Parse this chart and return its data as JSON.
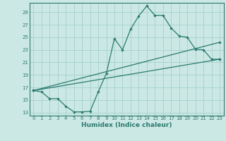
{
  "xlabel": "Humidex (Indice chaleur)",
  "bg_color": "#cce8e4",
  "grid_color": "#a8d4cf",
  "line_color": "#2a7a6e",
  "xlim": [
    -0.5,
    23.5
  ],
  "ylim": [
    12.5,
    30.5
  ],
  "yticks": [
    13,
    15,
    17,
    19,
    21,
    23,
    25,
    27,
    29
  ],
  "xticks": [
    0,
    1,
    2,
    3,
    4,
    5,
    6,
    7,
    8,
    9,
    10,
    11,
    12,
    13,
    14,
    15,
    16,
    17,
    18,
    19,
    20,
    21,
    22,
    23
  ],
  "line1_x": [
    0,
    1,
    2,
    3,
    4,
    5,
    6,
    7,
    8,
    9,
    10,
    11,
    12,
    13,
    14,
    15,
    16,
    17,
    18,
    19,
    20,
    21,
    22,
    23
  ],
  "line1_y": [
    16.5,
    16.3,
    15.2,
    15.2,
    14.0,
    13.1,
    13.1,
    13.2,
    16.3,
    19.2,
    24.8,
    23.0,
    26.3,
    28.4,
    30.0,
    28.5,
    28.5,
    26.5,
    25.2,
    25.0,
    23.1,
    23.0,
    21.5,
    21.5
  ],
  "line2_x": [
    0,
    23
  ],
  "line2_y": [
    16.5,
    21.5
  ],
  "line3_x": [
    0,
    23
  ],
  "line3_y": [
    16.5,
    24.2
  ]
}
